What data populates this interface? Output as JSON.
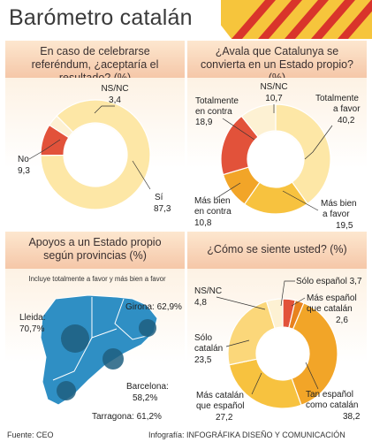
{
  "title": "Barómetro catalán",
  "colors": {
    "cream": "#fde7a6",
    "pale_yellow": "#fbd77a",
    "yellow": "#f7c23f",
    "orange": "#f2a528",
    "dark_orange": "#e8821e",
    "red": "#e2523a",
    "light": "#fdf1d3",
    "map": "#2f8fc4",
    "dot": "#1e5f80"
  },
  "chart_data": [
    {
      "type": "pie",
      "title": "En caso de celebrarse referéndum, ¿aceptaría el resultado? (%)",
      "slices": [
        {
          "label": "Sí",
          "value": 87.3,
          "value_text": "87,3",
          "color": "#fde7a6"
        },
        {
          "label": "No",
          "value": 9.3,
          "value_text": "9,3",
          "color": "#e2523a"
        },
        {
          "label": "NS/NC",
          "value": 3.4,
          "value_text": "3,4",
          "color": "#fdf1d3"
        }
      ]
    },
    {
      "type": "pie",
      "title": "¿Avala que Catalunya se convierta en un Estado propio? (%)",
      "slices": [
        {
          "label": "Totalmente a favor",
          "value": 40.2,
          "value_text": "40,2",
          "color": "#fde7a6"
        },
        {
          "label": "Más bien a favor",
          "value": 19.5,
          "value_text": "19,5",
          "color": "#f7c23f"
        },
        {
          "label": "Más bien en contra",
          "value": 10.8,
          "value_text": "10,8",
          "color": "#f2a528"
        },
        {
          "label": "Totalmente en contra",
          "value": 18.9,
          "value_text": "18,9",
          "color": "#e2523a"
        },
        {
          "label": "NS/NC",
          "value": 10.7,
          "value_text": "10,7",
          "color": "#fdf1d3"
        }
      ]
    },
    {
      "type": "pie",
      "title": "¿Cómo se siente usted? (%)",
      "slices": [
        {
          "label": "Sólo español",
          "value": 3.7,
          "value_text": "3,7",
          "color": "#e2523a"
        },
        {
          "label": "Más español que catalán",
          "value": 2.6,
          "value_text": "2,6",
          "color": "#e8821e"
        },
        {
          "label": "Tan español como catalán",
          "value": 38.2,
          "value_text": "38,2",
          "color": "#f2a528"
        },
        {
          "label": "Más catalán que español",
          "value": 27.2,
          "value_text": "27,2",
          "color": "#f7c23f"
        },
        {
          "label": "Sólo catalán",
          "value": 23.5,
          "value_text": "23,5",
          "color": "#fbd77a"
        },
        {
          "label": "NS/NC",
          "value": 4.8,
          "value_text": "4,8",
          "color": "#fdf1d3"
        }
      ]
    }
  ],
  "map_panel": {
    "title_line1": "Apoyos a un Estado propio",
    "title_line2": "según provincias (%)",
    "subtitle": "Incluye totalmente a favor y más bien a favor",
    "provinces": [
      {
        "name": "Girona",
        "value": 62.9,
        "text": "Girona: 62,9%"
      },
      {
        "name": "Lleida",
        "value": 70.7,
        "text_line1": "Lleida:",
        "text_line2": "70,7%"
      },
      {
        "name": "Barcelona",
        "value": 58.2,
        "text_line1": "Barcelona:",
        "text_line2": "58,2%"
      },
      {
        "name": "Tarragona",
        "value": 61.2,
        "text": "Tarragona: 61,2%"
      }
    ]
  },
  "footer": {
    "source": "Fuente: CEO",
    "credit": "Infografía: INFOGRÁFIKA DISEÑO Y COMUNICACIÓN"
  }
}
